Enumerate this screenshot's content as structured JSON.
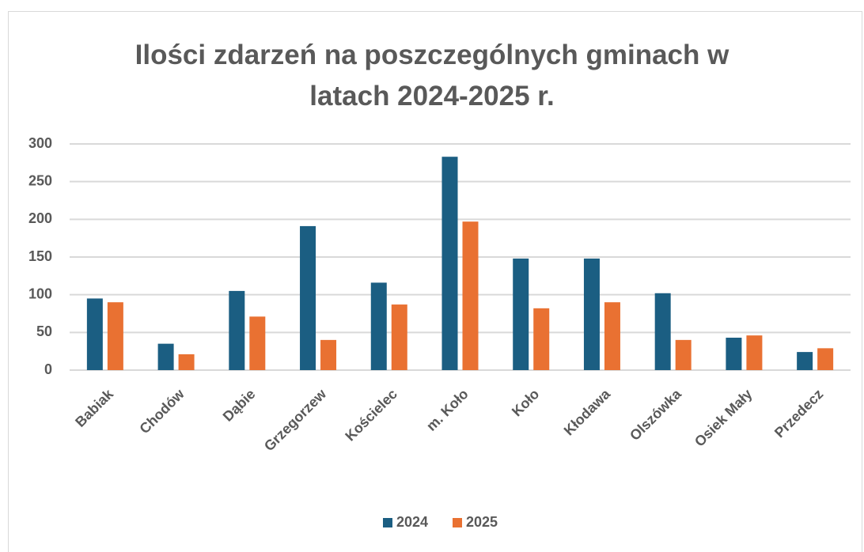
{
  "chart_data": {
    "type": "bar",
    "title": "Ilości zdarzeń na poszczególnych gminach w latach 2024-2025 r.",
    "categories": [
      "Babiak",
      "Chodów",
      "Dąbie",
      "Grzegorzew",
      "Kościelec",
      "m. Koło",
      "Koło",
      "Kłodawa",
      "Olszówka",
      "Osiek Mały",
      "Przedecz"
    ],
    "series": [
      {
        "name": "2024",
        "color": "#1b5e82",
        "values": [
          95,
          35,
          105,
          191,
          116,
          283,
          148,
          148,
          102,
          43,
          24
        ]
      },
      {
        "name": "2025",
        "color": "#e97132",
        "values": [
          90,
          21,
          71,
          40,
          87,
          197,
          82,
          90,
          40,
          46,
          29
        ]
      }
    ],
    "ylim": [
      0,
      300
    ],
    "yticks": [
      0,
      50,
      100,
      150,
      200,
      250,
      300
    ],
    "grid": true,
    "legend": "bottom"
  }
}
